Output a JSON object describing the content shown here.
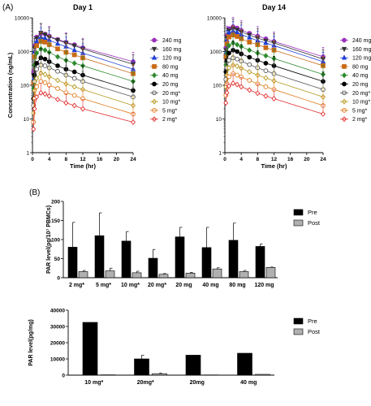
{
  "panel_labels": {
    "a": "(A)",
    "b": "(B)"
  },
  "chart_data": [
    {
      "type": "line",
      "title": "Day 1",
      "xlabel": "Time (hr)",
      "ylabel": "Concentration (ng/mL)",
      "yscale": "log",
      "xlim": [
        0,
        24
      ],
      "ylim": [
        1,
        10000
      ],
      "xticks": [
        "0",
        "4",
        "8",
        "12",
        "16",
        "20",
        "24"
      ],
      "yticks": [
        "1",
        "10",
        "100",
        "1000",
        "10000"
      ],
      "legend_position": "right",
      "x": [
        0.25,
        0.5,
        1,
        2,
        3,
        4,
        6,
        8,
        10,
        12,
        24
      ],
      "series": [
        {
          "name": "240 mg",
          "color": "#9b2fbd",
          "marker": "circle",
          "filled": true,
          "values": [
            250,
            1500,
            2700,
            3400,
            3300,
            2900,
            2300,
            1900,
            1600,
            1300,
            500
          ]
        },
        {
          "name": "160 mg",
          "color": "#333333",
          "marker": "tri-down",
          "filled": true,
          "values": [
            200,
            1300,
            2500,
            3600,
            3200,
            2700,
            2200,
            1800,
            1500,
            1200,
            420
          ]
        },
        {
          "name": "120 mg",
          "color": "#1f3fd6",
          "marker": "tri-up",
          "filled": true,
          "values": [
            150,
            1000,
            2000,
            2700,
            2500,
            2200,
            1700,
            1400,
            1100,
            900,
            300
          ]
        },
        {
          "name": "80 mg",
          "color": "#c96a14",
          "marker": "square",
          "filled": true,
          "values": [
            120,
            700,
            1500,
            2000,
            1900,
            1600,
            1200,
            950,
            800,
            650,
            220
          ]
        },
        {
          "name": "40 mg",
          "color": "#2e8b2e",
          "marker": "diamond",
          "filled": true,
          "values": [
            80,
            400,
            900,
            1200,
            1100,
            950,
            700,
            550,
            450,
            380,
            130
          ]
        },
        {
          "name": "20 mg",
          "color": "#000000",
          "marker": "circle",
          "filled": true,
          "values": [
            40,
            200,
            450,
            650,
            600,
            500,
            380,
            300,
            250,
            200,
            70
          ]
        },
        {
          "name": "20 mg*",
          "color": "#555555",
          "marker": "circle",
          "filled": false,
          "values": [
            25,
            130,
            300,
            400,
            380,
            330,
            260,
            200,
            160,
            130,
            45
          ]
        },
        {
          "name": "10 mg*",
          "color": "#b59a20",
          "marker": "diamond",
          "filled": false,
          "values": [
            15,
            70,
            160,
            230,
            210,
            180,
            140,
            110,
            90,
            75,
            25
          ]
        },
        {
          "name": "5 mg*",
          "color": "#e07a1a",
          "marker": "circle",
          "filled": false,
          "values": [
            8,
            40,
            90,
            130,
            120,
            100,
            80,
            60,
            50,
            40,
            14
          ]
        },
        {
          "name": "2 mg*",
          "color": "#e03030",
          "marker": "diamond",
          "filled": false,
          "values": [
            5,
            20,
            45,
            60,
            55,
            48,
            38,
            30,
            25,
            20,
            8
          ]
        }
      ]
    },
    {
      "type": "line",
      "title": "Day 14",
      "xlabel": "Time (hr)",
      "ylabel": "",
      "yscale": "log",
      "xlim": [
        0,
        24
      ],
      "ylim": [
        1,
        10000
      ],
      "xticks": [
        "0",
        "4",
        "8",
        "12",
        "16",
        "20",
        "24"
      ],
      "yticks": [
        "1",
        "10",
        "100",
        "1000",
        "10000"
      ],
      "legend_position": "right",
      "x": [
        0.25,
        0.5,
        1,
        2,
        3,
        4,
        6,
        8,
        10,
        12,
        24
      ],
      "series": [
        {
          "name": "240 mg",
          "color": "#9b2fbd",
          "marker": "circle",
          "filled": true,
          "values": [
            1300,
            3000,
            4800,
            5500,
            5000,
            4300,
            3500,
            2900,
            2400,
            2000,
            700
          ]
        },
        {
          "name": "160 mg",
          "color": "#333333",
          "marker": "tri-down",
          "filled": true,
          "values": [
            1100,
            2600,
            4200,
            4800,
            4400,
            3800,
            3100,
            2500,
            2100,
            1800,
            600
          ]
        },
        {
          "name": "120 mg",
          "color": "#1f3fd6",
          "marker": "tri-up",
          "filled": true,
          "values": [
            900,
            2200,
            3600,
            4100,
            3700,
            3200,
            2600,
            2100,
            1800,
            1500,
            500
          ]
        },
        {
          "name": "80 mg",
          "color": "#c96a14",
          "marker": "square",
          "filled": true,
          "values": [
            700,
            1700,
            2700,
            3100,
            2800,
            2400,
            1900,
            1600,
            1300,
            1100,
            380
          ]
        },
        {
          "name": "40 mg",
          "color": "#2e8b2e",
          "marker": "diamond",
          "filled": true,
          "values": [
            400,
            900,
            1500,
            1800,
            1600,
            1400,
            1100,
            900,
            750,
            620,
            210
          ]
        },
        {
          "name": "20 mg",
          "color": "#000000",
          "marker": "circle",
          "filled": true,
          "values": [
            250,
            550,
            900,
            1100,
            1000,
            850,
            680,
            550,
            450,
            380,
            130
          ]
        },
        {
          "name": "20 mg*",
          "color": "#555555",
          "marker": "circle",
          "filled": false,
          "values": [
            150,
            330,
            550,
            650,
            600,
            520,
            410,
            330,
            270,
            220,
            75
          ]
        },
        {
          "name": "10 mg*",
          "color": "#b59a20",
          "marker": "diamond",
          "filled": false,
          "values": [
            90,
            200,
            330,
            400,
            370,
            320,
            250,
            200,
            165,
            135,
            45
          ]
        },
        {
          "name": "5 mg*",
          "color": "#e07a1a",
          "marker": "circle",
          "filled": false,
          "values": [
            50,
            110,
            180,
            220,
            200,
            175,
            140,
            110,
            90,
            75,
            25
          ]
        },
        {
          "name": "2 mg*",
          "color": "#e03030",
          "marker": "diamond",
          "filled": false,
          "values": [
            30,
            60,
            95,
            115,
            105,
            90,
            72,
            58,
            48,
            40,
            14
          ]
        }
      ]
    },
    {
      "type": "bar",
      "xlabel": "",
      "ylabel": "PAR level(pg/10⁷ PBMCs)",
      "ylim": [
        0,
        200
      ],
      "yticks": [
        "0",
        "50",
        "100",
        "150",
        "200"
      ],
      "categories": [
        "2 mg*",
        "5 mg*",
        "10 mg*",
        "20 mg*",
        "20 mg",
        "40 mg",
        "80 mg",
        "120 mg"
      ],
      "legend_position": "right",
      "series": [
        {
          "name": "Pre",
          "color": "#000000",
          "values": [
            80,
            110,
            96,
            51,
            107,
            79,
            98,
            82
          ],
          "error": [
            65,
            60,
            25,
            23,
            25,
            53,
            45,
            6
          ]
        },
        {
          "name": "Post",
          "color": "#b0b0b0",
          "values": [
            16,
            18,
            13,
            9,
            12,
            23,
            16,
            27
          ],
          "error": [
            3,
            7,
            4,
            2,
            2,
            3,
            3,
            1
          ]
        }
      ]
    },
    {
      "type": "bar",
      "xlabel": "",
      "ylabel": "PAR level(pg/mg)",
      "ylim": [
        0,
        40000
      ],
      "yticks": [
        "0",
        "10000",
        "20000",
        "30000",
        "40000"
      ],
      "categories": [
        "10 mg*",
        "20mg*",
        "20mg",
        "40 mg"
      ],
      "legend_position": "right",
      "series": [
        {
          "name": "Pre",
          "color": "#000000",
          "values": [
            32500,
            10000,
            12300,
            13500
          ],
          "error": [
            0,
            2300,
            0,
            0
          ]
        },
        {
          "name": "Post",
          "color": "#b0b0b0",
          "values": [
            200,
            900,
            150,
            500
          ],
          "error": [
            0,
            350,
            0,
            0
          ]
        }
      ]
    }
  ]
}
